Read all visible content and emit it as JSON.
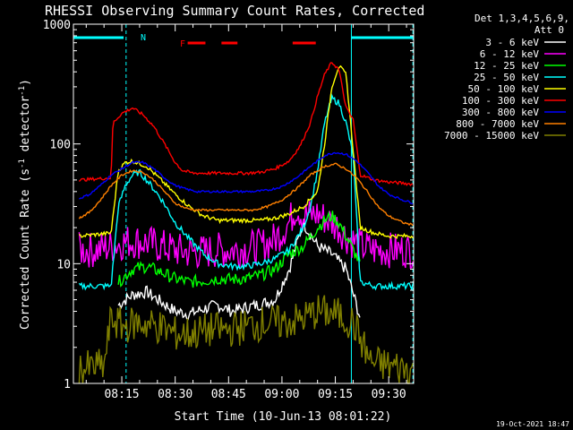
{
  "chart_data": {
    "type": "line",
    "title": "RHESSI Observing Summary Count Rates, Corrected",
    "xlabel": "Start Time (10-Jun-13 08:01:22)",
    "ylabel_prefix": "Corrected Count Rate (s",
    "ylabel_sup1": "-1",
    "ylabel_mid": " detector",
    "ylabel_sup2": "-1",
    "ylabel_suffix": ")",
    "x_unit": "minutes since 08:00",
    "xlim": [
      1.4,
      97
    ],
    "ylim": [
      1,
      1000
    ],
    "yscale": "log",
    "x_ticks": [
      {
        "x": 15,
        "label": "08:15"
      },
      {
        "x": 30,
        "label": "08:30"
      },
      {
        "x": 45,
        "label": "08:45"
      },
      {
        "x": 60,
        "label": "09:00"
      },
      {
        "x": 75,
        "label": "09:15"
      },
      {
        "x": 90,
        "label": "09:30"
      }
    ],
    "y_ticks": [
      {
        "y": 1,
        "label": "1"
      },
      {
        "y": 10,
        "label": "10"
      },
      {
        "y": 100,
        "label": "100"
      },
      {
        "y": 1000,
        "label": "1000"
      }
    ],
    "legend_header": [
      "Det 1,3,4,5,6,9,",
      "Att 0"
    ],
    "legend_position": "right",
    "annotations": {
      "night_label": "N",
      "flare_label": "F",
      "night_bars": [
        [
          1.4,
          15.5
        ],
        [
          79.5,
          97
        ]
      ],
      "flare_bars": [
        [
          33.5,
          38.5
        ],
        [
          43,
          47.5
        ],
        [
          63,
          69.5
        ]
      ],
      "vertical_markers": [
        16.2,
        79.5,
        96.8
      ],
      "solid_markers": [
        79.5
      ]
    },
    "series": [
      {
        "name": "3 - 6 keV",
        "color": "#ffffff",
        "x": [
          14,
          18,
          22,
          26,
          30,
          34,
          38,
          42,
          46,
          50,
          54,
          58,
          62,
          66,
          70,
          74,
          78,
          82
        ],
        "y": [
          4.5,
          5.5,
          5.8,
          4.8,
          4.0,
          3.8,
          4.2,
          4.5,
          4.0,
          4.3,
          4.6,
          5.0,
          9.0,
          22,
          14,
          12,
          9,
          3.5
        ]
      },
      {
        "name": "6 - 12 keV",
        "color": "#ff00ff",
        "x": [
          3,
          8,
          12,
          15,
          18,
          22,
          26,
          30,
          34,
          38,
          42,
          46,
          50,
          54,
          58,
          62,
          64,
          66,
          70,
          74,
          76,
          78,
          82,
          86,
          90,
          94,
          97
        ],
        "y": [
          13,
          13,
          14,
          15,
          15.5,
          15,
          14,
          13,
          12.5,
          12.5,
          13,
          13,
          13.5,
          14,
          16,
          22,
          30,
          25,
          26,
          22,
          20,
          17,
          14,
          13,
          13,
          13,
          13
        ]
      },
      {
        "name": "12 - 25 keV",
        "color": "#00ff00",
        "x": [
          14,
          18,
          22,
          26,
          30,
          34,
          38,
          42,
          46,
          50,
          54,
          58,
          62,
          66,
          70,
          72,
          74,
          76,
          78,
          82
        ],
        "y": [
          7,
          9,
          9.5,
          8.5,
          7.5,
          7,
          7.2,
          7.5,
          7.4,
          7.5,
          8,
          9,
          12,
          14,
          20,
          23,
          25,
          22,
          17,
          10
        ]
      },
      {
        "name": "25 - 50 keV",
        "color": "#00ffff",
        "x": [
          3,
          12,
          14,
          16,
          18,
          20,
          22,
          24,
          26,
          28,
          30,
          34,
          38,
          42,
          46,
          50,
          54,
          58,
          62,
          66,
          68,
          70,
          72,
          74,
          76,
          78,
          80,
          82,
          86,
          90,
          94,
          97
        ],
        "y": [
          6.5,
          6.5,
          30,
          45,
          55,
          58,
          50,
          42,
          35,
          28,
          22,
          16,
          12,
          10,
          9.5,
          9.5,
          10,
          11,
          13,
          20,
          30,
          60,
          150,
          240,
          220,
          150,
          80,
          7,
          6.5,
          6.5,
          6.5,
          6.5
        ]
      },
      {
        "name": "50 - 100 keV",
        "color": "#ffff00",
        "x": [
          3,
          12,
          14,
          16,
          18,
          22,
          26,
          30,
          34,
          38,
          42,
          46,
          50,
          54,
          58,
          62,
          66,
          70,
          72,
          74,
          76,
          78,
          80,
          82,
          86,
          90,
          94,
          97
        ],
        "y": [
          17,
          18,
          60,
          70,
          72,
          65,
          50,
          38,
          30,
          25,
          23,
          23,
          23,
          23,
          24,
          26,
          30,
          40,
          100,
          300,
          450,
          380,
          90,
          20,
          18,
          17,
          17,
          17
        ]
      },
      {
        "name": "100 - 300 keV",
        "color": "#ff0000",
        "x": [
          3,
          12,
          12.5,
          15,
          18,
          21,
          24,
          27,
          30,
          32,
          35,
          38,
          42,
          46,
          50,
          54,
          58,
          62,
          65,
          68,
          70,
          72,
          74,
          76,
          78,
          80,
          82,
          86,
          90,
          94,
          97
        ],
        "y": [
          50,
          52,
          150,
          180,
          200,
          175,
          140,
          100,
          70,
          60,
          57,
          57,
          57,
          57,
          57,
          58,
          62,
          72,
          95,
          150,
          250,
          380,
          480,
          420,
          200,
          160,
          55,
          50,
          48,
          47,
          46
        ]
      },
      {
        "name": "300 - 800 keV",
        "color": "#0000ff",
        "x": [
          3,
          6,
          9,
          12,
          15,
          18,
          21,
          24,
          27,
          30,
          33,
          36,
          40,
          44,
          48,
          52,
          56,
          60,
          64,
          68,
          72,
          75,
          78,
          81,
          84,
          87,
          90,
          94,
          97
        ],
        "y": [
          35,
          38,
          45,
          55,
          62,
          70,
          70,
          62,
          52,
          45,
          42,
          40,
          40,
          40,
          40,
          40,
          41,
          44,
          52,
          65,
          80,
          85,
          82,
          72,
          58,
          45,
          38,
          34,
          32
        ]
      },
      {
        "name": "800 - 7000 keV",
        "color": "#ff8000",
        "x": [
          3,
          6,
          9,
          12,
          15,
          18,
          21,
          24,
          27,
          30,
          33,
          36,
          40,
          44,
          48,
          52,
          56,
          60,
          64,
          68,
          72,
          75,
          78,
          81,
          84,
          87,
          90,
          94,
          97
        ],
        "y": [
          24,
          27,
          34,
          45,
          55,
          60,
          58,
          50,
          40,
          32,
          29,
          28,
          28,
          28,
          28,
          28,
          30,
          34,
          42,
          55,
          65,
          68,
          62,
          52,
          40,
          30,
          25,
          22,
          21
        ]
      },
      {
        "name": "7000 - 15000 keV",
        "color": "#808000",
        "x": [
          3,
          10,
          12,
          15,
          20,
          25,
          30,
          35,
          40,
          45,
          50,
          55,
          60,
          65,
          70,
          75,
          80,
          85,
          90,
          97
        ],
        "y": [
          1.3,
          1.4,
          3.5,
          3.0,
          3.2,
          3.0,
          2.6,
          2.6,
          2.8,
          2.8,
          3.0,
          3.2,
          3.2,
          3.4,
          4.0,
          3.8,
          3.2,
          1.5,
          1.4,
          1.3
        ]
      }
    ]
  }
}
